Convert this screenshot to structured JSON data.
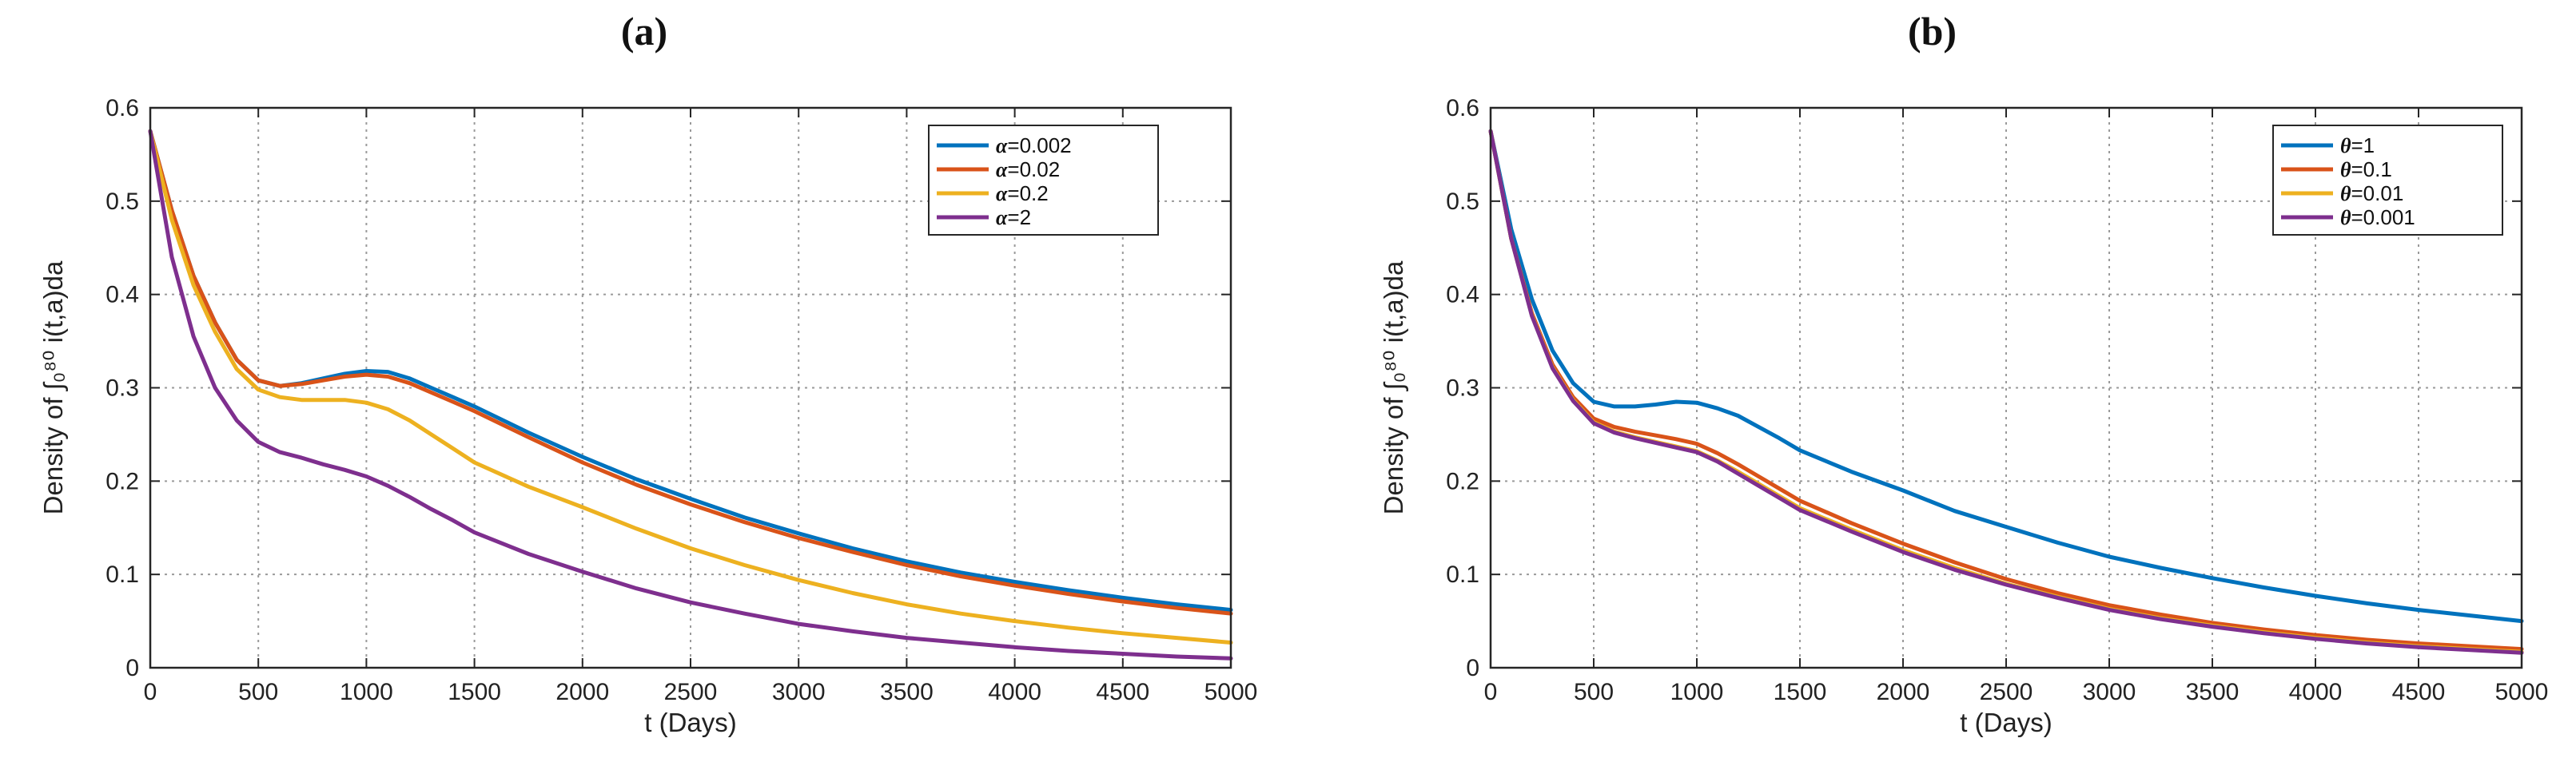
{
  "colors": {
    "blue": "#0072BD",
    "orange": "#D95319",
    "yellow": "#EDB120",
    "purple": "#7E2F8E"
  },
  "panels": [
    {
      "label": "(a)",
      "chart_data": {
        "type": "line",
        "xlabel": "t (Days)",
        "ylabel": "Density of ∫₀⁸⁰ i(t,a)da",
        "xlim": [
          0,
          5000
        ],
        "ylim": [
          0,
          0.6
        ],
        "xticks": [
          "0",
          "500",
          "1000",
          "1500",
          "2000",
          "2500",
          "3000",
          "3500",
          "4000",
          "4500",
          "5000"
        ],
        "yticks": [
          "0",
          "0.1",
          "0.2",
          "0.3",
          "0.4",
          "0.5",
          "0.6"
        ],
        "grid": true,
        "legend_position": "top-right",
        "series": [
          {
            "symbol": "α",
            "value": "=0.002",
            "color": "#0072BD",
            "x": [
              0,
              100,
              200,
              300,
              400,
              500,
              600,
              700,
              800,
              900,
              1000,
              1100,
              1200,
              1300,
              1400,
              1500,
              1750,
              2000,
              2250,
              2500,
              2750,
              3000,
              3250,
              3500,
              3750,
              4000,
              4250,
              4500,
              4750,
              5000
            ],
            "y": [
              0.575,
              0.49,
              0.42,
              0.37,
              0.33,
              0.308,
              0.302,
              0.305,
              0.31,
              0.315,
              0.318,
              0.317,
              0.31,
              0.3,
              0.29,
              0.28,
              0.252,
              0.226,
              0.202,
              0.181,
              0.161,
              0.144,
              0.128,
              0.114,
              0.102,
              0.092,
              0.083,
              0.075,
              0.068,
              0.062
            ]
          },
          {
            "symbol": "α",
            "value": "=0.02",
            "color": "#D95319",
            "x": [
              0,
              100,
              200,
              300,
              400,
              500,
              600,
              700,
              800,
              900,
              1000,
              1100,
              1200,
              1300,
              1400,
              1500,
              1750,
              2000,
              2250,
              2500,
              2750,
              3000,
              3250,
              3500,
              3750,
              4000,
              4250,
              4500,
              4750,
              5000
            ],
            "y": [
              0.575,
              0.49,
              0.42,
              0.37,
              0.33,
              0.308,
              0.302,
              0.304,
              0.308,
              0.312,
              0.314,
              0.312,
              0.305,
              0.295,
              0.285,
              0.275,
              0.247,
              0.22,
              0.196,
              0.175,
              0.156,
              0.139,
              0.124,
              0.11,
              0.098,
              0.088,
              0.079,
              0.071,
              0.064,
              0.058
            ]
          },
          {
            "symbol": "α",
            "value": "=0.2",
            "color": "#EDB120",
            "x": [
              0,
              100,
              200,
              300,
              400,
              500,
              600,
              700,
              800,
              900,
              1000,
              1100,
              1200,
              1300,
              1400,
              1500,
              1750,
              2000,
              2250,
              2500,
              2750,
              3000,
              3250,
              3500,
              3750,
              4000,
              4250,
              4500,
              4750,
              5000
            ],
            "y": [
              0.575,
              0.48,
              0.41,
              0.36,
              0.32,
              0.298,
              0.29,
              0.287,
              0.287,
              0.287,
              0.284,
              0.277,
              0.265,
              0.25,
              0.235,
              0.22,
              0.194,
              0.172,
              0.149,
              0.128,
              0.11,
              0.094,
              0.08,
              0.068,
              0.058,
              0.05,
              0.043,
              0.037,
              0.032,
              0.027
            ]
          },
          {
            "symbol": "α",
            "value": "=2",
            "color": "#7E2F8E",
            "x": [
              0,
              100,
              200,
              300,
              400,
              500,
              600,
              700,
              800,
              900,
              1000,
              1100,
              1200,
              1300,
              1400,
              1500,
              1750,
              2000,
              2250,
              2500,
              2750,
              3000,
              3250,
              3500,
              3750,
              4000,
              4250,
              4500,
              4750,
              5000
            ],
            "y": [
              0.575,
              0.44,
              0.355,
              0.3,
              0.265,
              0.242,
              0.231,
              0.225,
              0.218,
              0.212,
              0.205,
              0.195,
              0.183,
              0.17,
              0.158,
              0.145,
              0.122,
              0.103,
              0.085,
              0.07,
              0.058,
              0.047,
              0.039,
              0.032,
              0.027,
              0.022,
              0.018,
              0.015,
              0.012,
              0.01
            ]
          }
        ]
      }
    },
    {
      "label": "(b)",
      "chart_data": {
        "type": "line",
        "xlabel": "t (Days)",
        "ylabel": "Density of ∫₀⁸⁰ i(t,a)da",
        "xlim": [
          0,
          5000
        ],
        "ylim": [
          0,
          0.6
        ],
        "xticks": [
          "0",
          "500",
          "1000",
          "1500",
          "2000",
          "2500",
          "3000",
          "3500",
          "4000",
          "4500",
          "5000"
        ],
        "yticks": [
          "0",
          "0.1",
          "0.2",
          "0.3",
          "0.4",
          "0.5",
          "0.6"
        ],
        "grid": true,
        "legend_position": "top-right",
        "series": [
          {
            "symbol": "θ",
            "value": "=1",
            "color": "#0072BD",
            "x": [
              0,
              100,
              200,
              300,
              400,
              500,
              600,
              700,
              800,
              900,
              1000,
              1100,
              1200,
              1300,
              1400,
              1500,
              1750,
              2000,
              2250,
              2500,
              2750,
              3000,
              3250,
              3500,
              3750,
              4000,
              4250,
              4500,
              4750,
              5000
            ],
            "y": [
              0.575,
              0.47,
              0.395,
              0.34,
              0.305,
              0.285,
              0.28,
              0.28,
              0.282,
              0.285,
              0.284,
              0.278,
              0.27,
              0.258,
              0.246,
              0.233,
              0.21,
              0.19,
              0.168,
              0.151,
              0.134,
              0.119,
              0.107,
              0.096,
              0.086,
              0.077,
              0.069,
              0.062,
              0.056,
              0.05
            ]
          },
          {
            "symbol": "θ",
            "value": "=0.1",
            "color": "#D95319",
            "x": [
              0,
              100,
              200,
              300,
              400,
              500,
              600,
              700,
              800,
              900,
              1000,
              1100,
              1200,
              1300,
              1400,
              1500,
              1750,
              2000,
              2250,
              2500,
              2750,
              3000,
              3250,
              3500,
              3750,
              4000,
              4250,
              4500,
              4750,
              5000
            ],
            "y": [
              0.575,
              0.46,
              0.38,
              0.325,
              0.29,
              0.267,
              0.258,
              0.253,
              0.249,
              0.245,
              0.24,
              0.23,
              0.218,
              0.205,
              0.192,
              0.179,
              0.155,
              0.133,
              0.113,
              0.095,
              0.08,
              0.067,
              0.057,
              0.048,
              0.041,
              0.035,
              0.03,
              0.026,
              0.023,
              0.02
            ]
          },
          {
            "symbol": "θ",
            "value": "=0.01",
            "color": "#EDB120",
            "x": [
              0,
              100,
              200,
              300,
              400,
              500,
              600,
              700,
              800,
              900,
              1000,
              1100,
              1200,
              1300,
              1400,
              1500,
              1750,
              2000,
              2250,
              2500,
              2750,
              3000,
              3250,
              3500,
              3750,
              4000,
              4250,
              4500,
              4750,
              5000
            ],
            "y": [
              0.575,
              0.46,
              0.378,
              0.322,
              0.287,
              0.263,
              0.253,
              0.247,
              0.242,
              0.237,
              0.232,
              0.222,
              0.21,
              0.197,
              0.184,
              0.171,
              0.148,
              0.126,
              0.107,
              0.09,
              0.076,
              0.063,
              0.053,
              0.045,
              0.038,
              0.032,
              0.027,
              0.023,
              0.02,
              0.017
            ]
          },
          {
            "symbol": "θ",
            "value": "=0.001",
            "color": "#7E2F8E",
            "x": [
              0,
              100,
              200,
              300,
              400,
              500,
              600,
              700,
              800,
              900,
              1000,
              1100,
              1200,
              1300,
              1400,
              1500,
              1750,
              2000,
              2250,
              2500,
              2750,
              3000,
              3250,
              3500,
              3750,
              4000,
              4250,
              4500,
              4750,
              5000
            ],
            "y": [
              0.575,
              0.46,
              0.377,
              0.321,
              0.286,
              0.262,
              0.252,
              0.246,
              0.241,
              0.236,
              0.231,
              0.221,
              0.208,
              0.195,
              0.182,
              0.169,
              0.146,
              0.124,
              0.105,
              0.089,
              0.075,
              0.062,
              0.052,
              0.044,
              0.037,
              0.031,
              0.026,
              0.022,
              0.019,
              0.016
            ]
          }
        ]
      }
    }
  ]
}
